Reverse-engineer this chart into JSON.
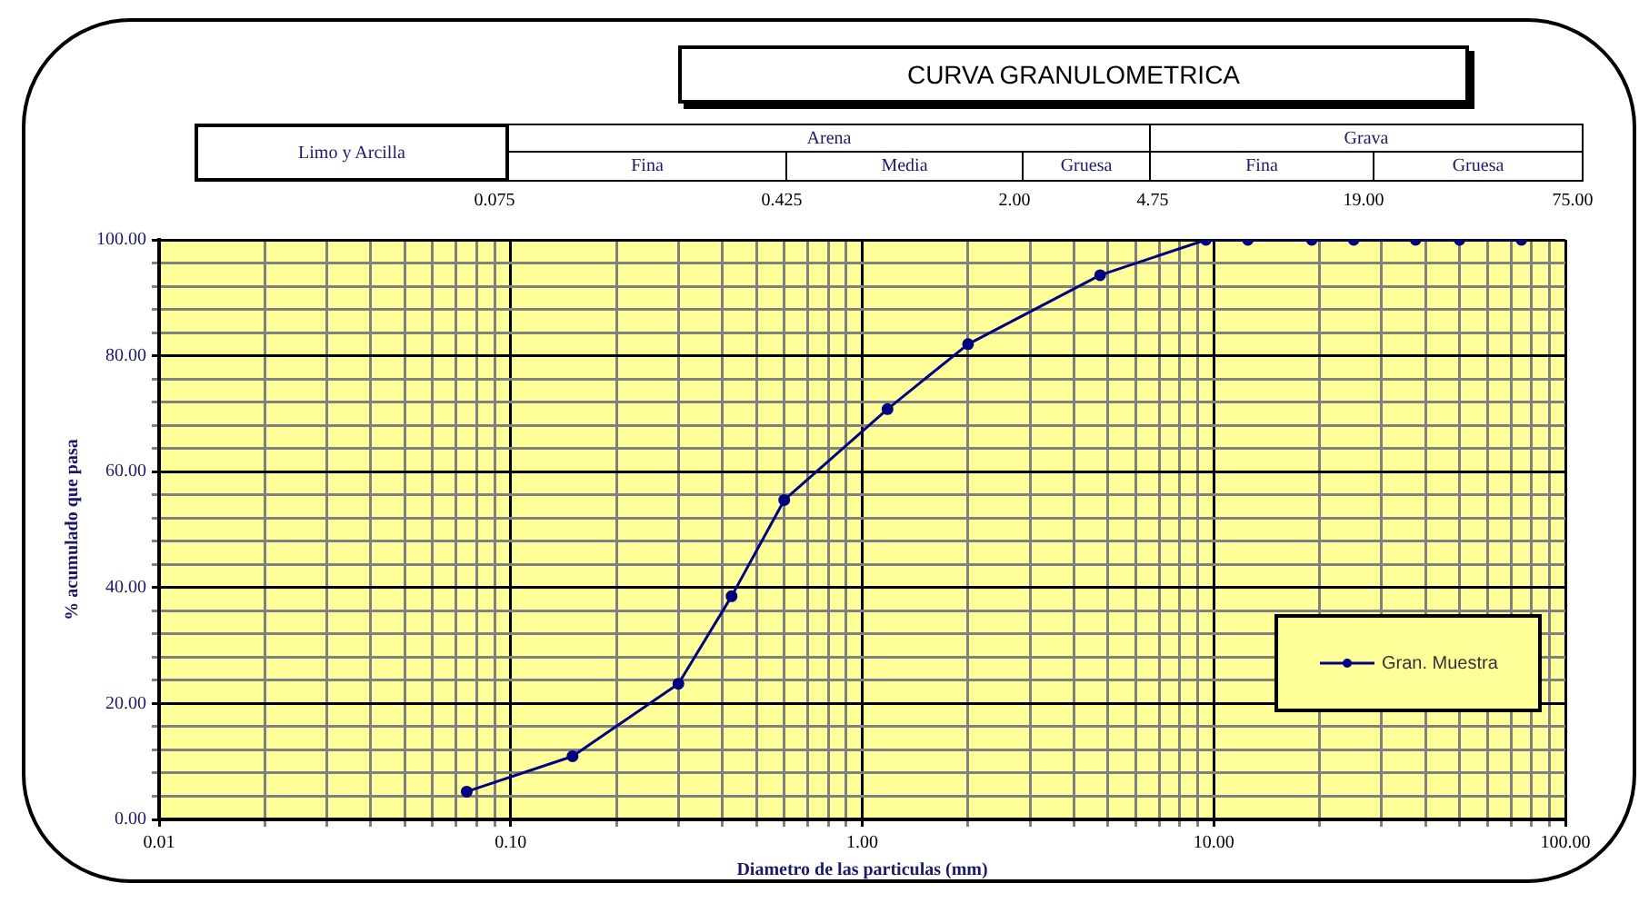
{
  "chart_data": {
    "type": "line",
    "title": "CURVA GRANULOMETRICA",
    "xlabel": "Diametro de las particulas (mm)",
    "ylabel": "% acumulado que pasa",
    "annotations": [
      "Limo y Arcilla",
      "Arena",
      "Grava",
      "Fina",
      "Media",
      "Gruesa",
      "Fina",
      "Gruesa",
      "0.075",
      "0.425",
      "2.00",
      "4.75",
      "19.00",
      "75.00"
    ],
    "log": "x",
    "xlim": [
      0.01,
      100
    ],
    "xticks": [
      {
        "value": 0.01,
        "label": "0.01"
      },
      {
        "value": 0.02,
        "label": null
      },
      {
        "value": 0.03,
        "label": null
      },
      {
        "value": 0.04,
        "label": null
      },
      {
        "value": 0.05,
        "label": null
      },
      {
        "value": 0.06,
        "label": null
      },
      {
        "value": 0.07,
        "label": null
      },
      {
        "value": 0.08,
        "label": null
      },
      {
        "value": 0.09,
        "label": null
      },
      {
        "value": 0.1,
        "label": "0.10"
      },
      {
        "value": 0.2,
        "label": null
      },
      {
        "value": 0.3,
        "label": null
      },
      {
        "value": 0.4,
        "label": null
      },
      {
        "value": 0.5,
        "label": null
      },
      {
        "value": 0.6,
        "label": null
      },
      {
        "value": 0.7,
        "label": null
      },
      {
        "value": 0.8,
        "label": null
      },
      {
        "value": 0.9,
        "label": null
      },
      {
        "value": 1,
        "label": "1.00"
      },
      {
        "value": 2,
        "label": null
      },
      {
        "value": 3,
        "label": null
      },
      {
        "value": 4,
        "label": null
      },
      {
        "value": 5,
        "label": null
      },
      {
        "value": 6,
        "label": null
      },
      {
        "value": 7,
        "label": null
      },
      {
        "value": 8,
        "label": null
      },
      {
        "value": 9,
        "label": null
      },
      {
        "value": 10,
        "label": "10.00"
      },
      {
        "value": 20,
        "label": null
      },
      {
        "value": 30,
        "label": null
      },
      {
        "value": 40,
        "label": null
      },
      {
        "value": 50,
        "label": null
      },
      {
        "value": 60,
        "label": null
      },
      {
        "value": 70,
        "label": null
      },
      {
        "value": 80,
        "label": null
      },
      {
        "value": 90,
        "label": null
      },
      {
        "value": 100,
        "label": "100.00"
      }
    ],
    "ylim": [
      0,
      100
    ],
    "yticks": [
      {
        "value": 0,
        "label": "0.00"
      },
      {
        "value": 4,
        "label": null
      },
      {
        "value": 8,
        "label": null
      },
      {
        "value": 12,
        "label": null
      },
      {
        "value": 16,
        "label": null
      },
      {
        "value": 20,
        "label": "20.00"
      },
      {
        "value": 24,
        "label": null
      },
      {
        "value": 28,
        "label": null
      },
      {
        "value": 32,
        "label": null
      },
      {
        "value": 36,
        "label": null
      },
      {
        "value": 40,
        "label": "40.00"
      },
      {
        "value": 44,
        "label": null
      },
      {
        "value": 48,
        "label": null
      },
      {
        "value": 52,
        "label": null
      },
      {
        "value": 56,
        "label": null
      },
      {
        "value": 60,
        "label": "60.00"
      },
      {
        "value": 64,
        "label": null
      },
      {
        "value": 68,
        "label": null
      },
      {
        "value": 72,
        "label": null
      },
      {
        "value": 76,
        "label": null
      },
      {
        "value": 80,
        "label": "80.00"
      },
      {
        "value": 84,
        "label": null
      },
      {
        "value": 88,
        "label": null
      },
      {
        "value": 92,
        "label": null
      },
      {
        "value": 96,
        "label": null
      },
      {
        "value": 100,
        "label": "100.00"
      }
    ],
    "grid": true,
    "legend": "bottom right",
    "marker": "circle",
    "line_style": "solid",
    "series": [
      {
        "name": "Gran. Muestra",
        "color": "#000080",
        "x": [
          0.075,
          0.15,
          0.3,
          0.425,
          0.6,
          1.18,
          2,
          4.75,
          9.5,
          12.5,
          19,
          25,
          37.5,
          50,
          75
        ],
        "values": [
          4.8,
          10.9,
          23.4,
          38.5,
          55.1,
          70.8,
          82,
          93.9,
          100,
          100,
          100,
          100,
          100,
          100,
          100
        ]
      }
    ]
  }
}
